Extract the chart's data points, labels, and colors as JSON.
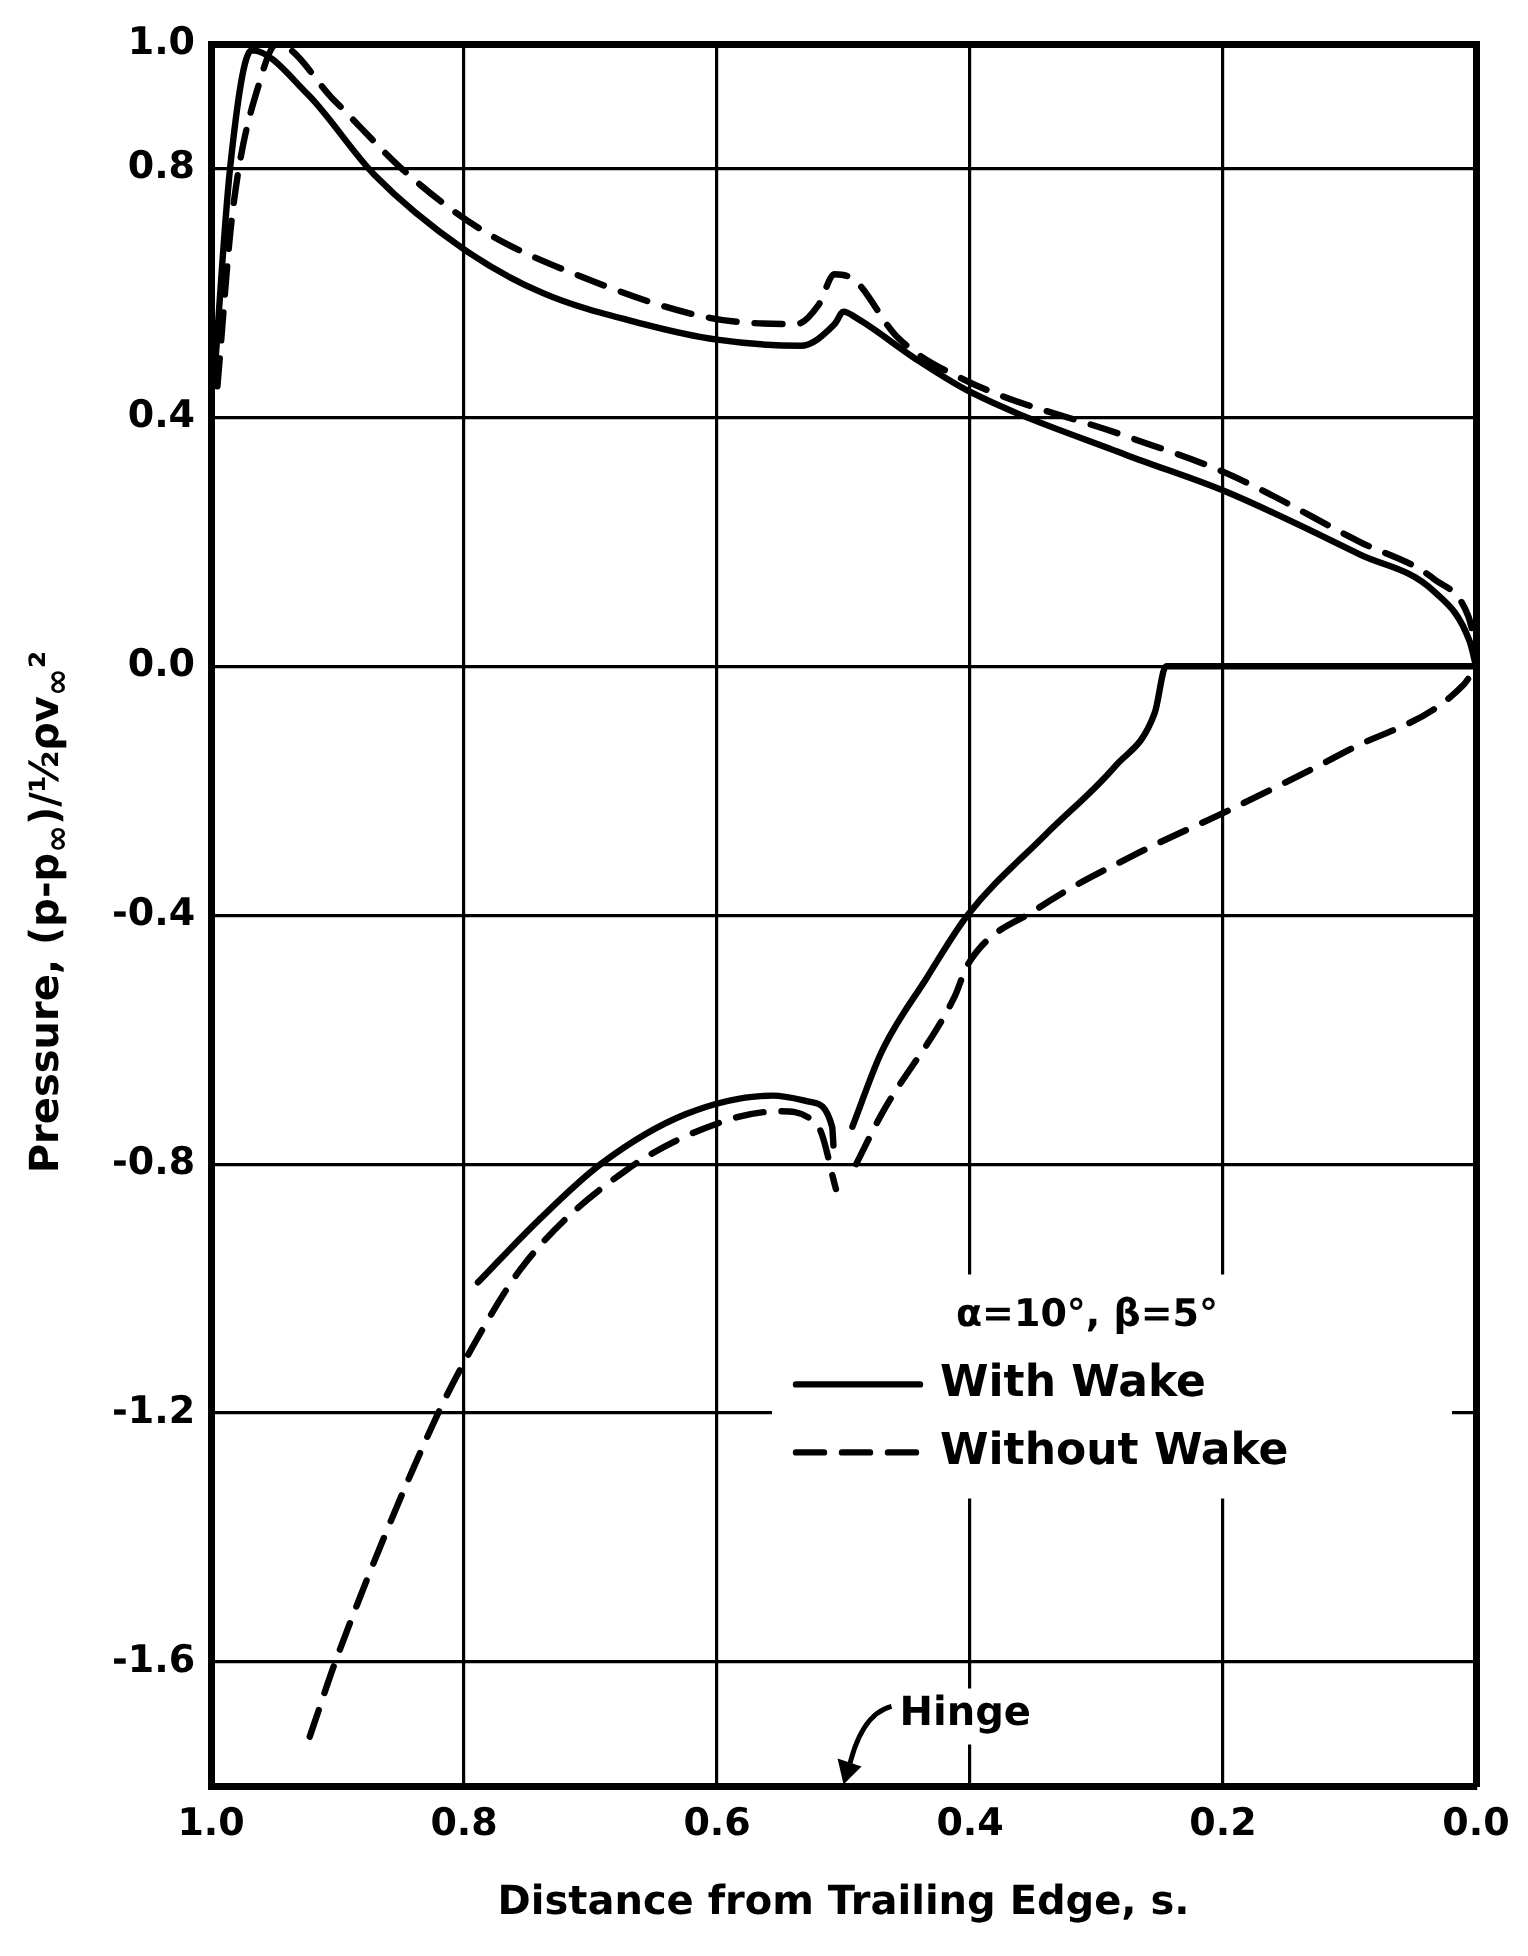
{
  "chart_data": {
    "type": "line",
    "xlabel": "Distance from Trailing Edge, s.",
    "ylabel": "Pressure, (p-p$_{∞}$)/½ρv$_{∞}$²",
    "legend_title": "α=10°, β=5°",
    "legend": "bottom right",
    "grid": true,
    "marker": "none",
    "xlim": [
      1.0,
      0.0
    ],
    "xticks": [
      {
        "value": 1.0,
        "label": "1.0"
      },
      {
        "value": 0.8,
        "label": "0.8"
      },
      {
        "value": 0.6,
        "label": "0.6"
      },
      {
        "value": 0.4,
        "label": "0.4"
      },
      {
        "value": 0.2,
        "label": "0.2"
      },
      {
        "value": 0.0,
        "label": "0.0"
      }
    ],
    "ylim": [
      -1.8,
      1.0
    ],
    "yticks": [
      {
        "value": 1.0,
        "label": "1.0"
      },
      {
        "value": 0.8,
        "label": "0.8"
      },
      {
        "value": 0.4,
        "label": "0.4"
      },
      {
        "value": 0.0,
        "label": "0.0"
      },
      {
        "value": -0.4,
        "label": "-0.4"
      },
      {
        "value": -0.8,
        "label": "-0.8"
      },
      {
        "value": -1.2,
        "label": "-1.2"
      },
      {
        "value": -1.6,
        "label": "-1.6"
      }
    ],
    "annotations": [
      "Hinge"
    ],
    "series": [
      {
        "name": "With Wake",
        "color": "#000000",
        "line_style": "solid",
        "x": [
          0.998,
          0.985,
          0.968,
          0.924,
          0.871,
          0.8,
          0.738,
          0.658,
          0.6,
          0.534,
          0.507,
          0.5,
          0.49,
          0.44,
          0.399,
          0.277,
          0.197,
          0.092,
          0.033,
          0.005,
          0.0
        ],
        "values": [
          0.45,
          0.8,
          0.99,
          0.92,
          0.79,
          0.67,
          0.6,
          0.55,
          0.525,
          0.515,
          0.55,
          0.57,
          0.56,
          0.49,
          0.44,
          0.34,
          0.28,
          0.18,
          0.12,
          0.04,
          0.0
        ]
      },
      {
        "name": "Without Wake",
        "color": "#000000",
        "line_style": "dashed",
        "x": [
          0.995,
          0.983,
          0.96,
          0.948,
          0.903,
          0.844,
          0.785,
          0.712,
          0.606,
          0.537,
          0.52,
          0.507,
          0.491,
          0.458,
          0.404,
          0.277,
          0.197,
          0.092,
          0.033,
          0.006,
          0.0
        ],
        "values": [
          0.45,
          0.73,
          0.95,
          1.0,
          0.91,
          0.79,
          0.7,
          0.63,
          0.56,
          0.55,
          0.58,
          0.63,
          0.62,
          0.53,
          0.46,
          0.37,
          0.31,
          0.2,
          0.14,
          0.08,
          0.03
        ]
      },
      {
        "color": "#000000",
        "line_style": "solid",
        "x": [
          0.789,
          0.741,
          0.692,
          0.625,
          0.556,
          0.526,
          0.509,
          0.508
        ],
        "values": [
          -0.99,
          -0.89,
          -0.8,
          -0.72,
          -0.69,
          -0.7,
          -0.74,
          -0.77
        ]
      },
      {
        "color": "#000000",
        "line_style": "solid",
        "x": [
          0.493,
          0.47,
          0.434,
          0.402,
          0.34,
          0.285,
          0.254,
          0.245,
          0.2,
          0.1,
          0.0
        ],
        "values": [
          -0.74,
          -0.62,
          -0.5,
          -0.4,
          -0.27,
          -0.16,
          -0.075,
          0.0,
          0.0,
          0.0,
          0.0
        ]
      },
      {
        "color": "#000000",
        "line_style": "dashed",
        "x": [
          0.922,
          0.9,
          0.825,
          0.795,
          0.752,
          0.672,
          0.593,
          0.55,
          0.52,
          0.506
        ],
        "values": [
          -1.72,
          -1.59,
          -1.22,
          -1.1,
          -0.96,
          -0.81,
          -0.73,
          -0.715,
          -0.74,
          -0.84
        ]
      },
      {
        "color": "#000000",
        "line_style": "dashed",
        "x": [
          0.49,
          0.47,
          0.412,
          0.402,
          0.347,
          0.267,
          0.194,
          0.102,
          0.01,
          0.0
        ],
        "values": [
          -0.8,
          -0.72,
          -0.53,
          -0.48,
          -0.39,
          -0.3,
          -0.23,
          -0.136,
          -0.03,
          0.0
        ]
      }
    ]
  }
}
